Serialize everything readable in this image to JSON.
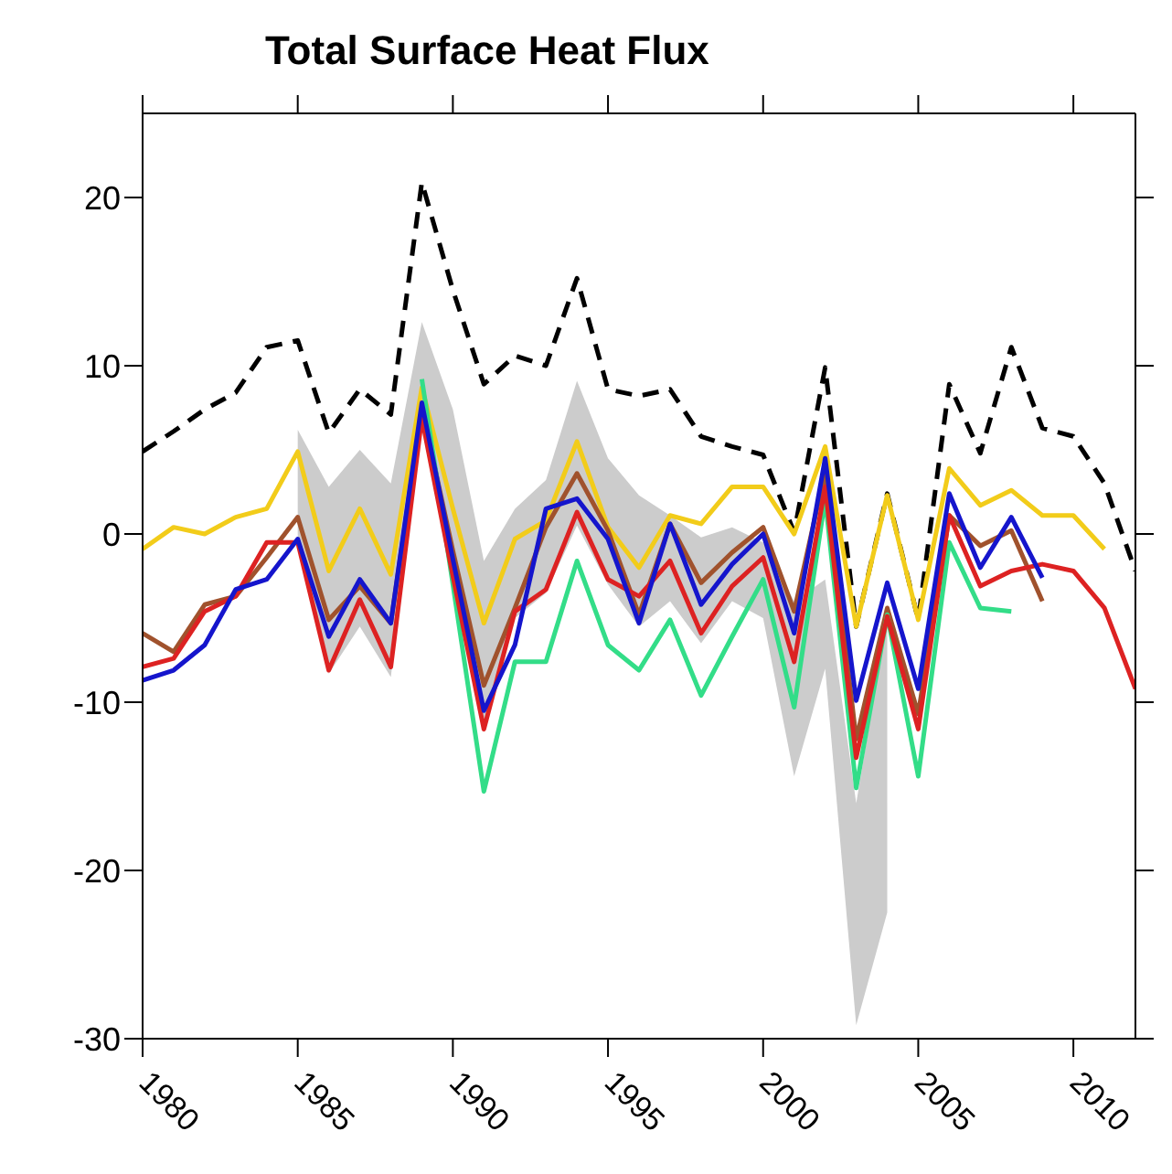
{
  "chart_data": {
    "type": "line",
    "title": "Total Surface Heat Flux",
    "x": [
      1980,
      1981,
      1982,
      1983,
      1984,
      1985,
      1986,
      1987,
      1988,
      1989,
      1990,
      1991,
      1992,
      1993,
      1994,
      1995,
      1996,
      1997,
      1998,
      1999,
      2000,
      2001,
      2002,
      2003,
      2004,
      2005,
      2006,
      2007,
      2008,
      2009,
      2010,
      2011,
      2012
    ],
    "xlim": [
      1980,
      2012
    ],
    "xticks": [
      1980,
      1985,
      1990,
      1995,
      2000,
      2005,
      2010
    ],
    "ylim": [
      -30,
      25
    ],
    "yticks": [
      -30,
      -20,
      -10,
      0,
      10,
      20
    ],
    "grid": false,
    "legend": false,
    "marker": "none",
    "series": [
      {
        "type": "area",
        "color": "#cccccc",
        "values": [
          null,
          null,
          null,
          null,
          null,
          null,
          null,
          null,
          null,
          null,
          null,
          null,
          null,
          null,
          null,
          null,
          null,
          null,
          null,
          null,
          null,
          null,
          null,
          null,
          null,
          null,
          null,
          null,
          null,
          null,
          null,
          null,
          null
        ],
        "upper": [
          null,
          null,
          null,
          null,
          null,
          6.2,
          2.8,
          5.0,
          3.0,
          12.6,
          7.4,
          -1.6,
          1.5,
          3.2,
          9.1,
          4.5,
          2.3,
          1.1,
          -0.2,
          0.4,
          -0.5,
          -4,
          -2.7,
          -16,
          -5,
          null,
          null,
          null,
          null,
          null,
          null,
          null,
          null
        ],
        "lower": [
          null,
          null,
          null,
          null,
          null,
          -0.5,
          -8.3,
          -5.5,
          -8.5,
          6.5,
          -2,
          -11.5,
          -5,
          -3.5,
          0.5,
          -3,
          -5.5,
          -4,
          -6.5,
          -4,
          -5,
          -14.4,
          -8,
          -29.2,
          -22.5,
          null,
          null,
          null,
          null,
          null,
          null,
          null,
          null
        ]
      },
      {
        "color": "#000000",
        "line_style": "dashed",
        "values": [
          4.9,
          6.1,
          7.4,
          8.4,
          11.1,
          11.5,
          6.0,
          8.6,
          7.1,
          20.9,
          14.5,
          8.9,
          10.6,
          10.0,
          15.2,
          8.6,
          8.2,
          8.6,
          5.8,
          5.2,
          4.7,
          0.1,
          9.9,
          -5.5,
          2.4,
          -5.1,
          8.9,
          4.8,
          11.1,
          6.3,
          5.8,
          3.0,
          -2.2
        ]
      },
      {
        "color": "#f2cc1a",
        "line_style": "solid",
        "values": [
          -0.9,
          0.4,
          0,
          1.0,
          1.5,
          4.9,
          -2.2,
          1.5,
          -2.4,
          8.7,
          1.5,
          -5.3,
          -0.3,
          0.8,
          5.5,
          0.4,
          -2.0,
          1.1,
          0.6,
          2.8,
          2.8,
          0,
          5.2,
          -5.5,
          2.3,
          -5.1,
          3.9,
          1.7,
          2.6,
          1.1,
          1.1,
          -0.9,
          null
        ]
      },
      {
        "color": "#a0522d",
        "line_style": "solid",
        "values": [
          -5.9,
          -7.0,
          -4.2,
          -3.7,
          -1.4,
          1.0,
          -5.1,
          -3.1,
          -5.3,
          7.5,
          -1,
          -9.0,
          -4.4,
          0.4,
          3.6,
          0.2,
          -4.8,
          0.6,
          -2.9,
          -1.1,
          0.4,
          -4.6,
          3.7,
          -12.2,
          -4.4,
          -10.7,
          1.1,
          -0.7,
          0.2,
          -4.0,
          null,
          null,
          null
        ]
      },
      {
        "color": "#33dd88",
        "line_style": "solid",
        "values": [
          null,
          null,
          null,
          null,
          null,
          null,
          null,
          null,
          null,
          9.2,
          -3,
          -15.3,
          -7.6,
          -7.6,
          -1.6,
          -6.6,
          -8.1,
          -5.1,
          -9.6,
          -6.1,
          -2.7,
          -10.3,
          2.1,
          -15.1,
          -4.8,
          -14.4,
          -0.5,
          -4.4,
          -4.6,
          null,
          null,
          null,
          null
        ]
      },
      {
        "color": "#dd2222",
        "line_style": "solid",
        "values": [
          -7.9,
          -7.4,
          -4.6,
          -3.7,
          -0.5,
          -0.5,
          -8.1,
          -3.9,
          -7.9,
          6.9,
          -2.5,
          -11.6,
          -4.6,
          -3.3,
          1.3,
          -2.7,
          -3.7,
          -1.6,
          -5.9,
          -3.1,
          -1.4,
          -7.6,
          2.8,
          -13.3,
          -4.9,
          -11.6,
          1.1,
          -3.1,
          -2.2,
          -1.8,
          -2.2,
          -4.4,
          -9.2
        ]
      },
      {
        "color": "#1515cc",
        "line_style": "solid",
        "values": [
          -8.7,
          -8.1,
          -6.6,
          -3.3,
          -2.7,
          -0.3,
          -6.1,
          -2.7,
          -5.3,
          7.8,
          -1.5,
          -10.5,
          -6.6,
          1.5,
          2.1,
          -0.3,
          -5.3,
          0.6,
          -4.2,
          -1.8,
          0,
          -5.9,
          4.5,
          -9.9,
          -2.9,
          -9.2,
          2.4,
          -2.0,
          1.0,
          -2.6,
          null,
          null,
          null
        ]
      }
    ]
  }
}
